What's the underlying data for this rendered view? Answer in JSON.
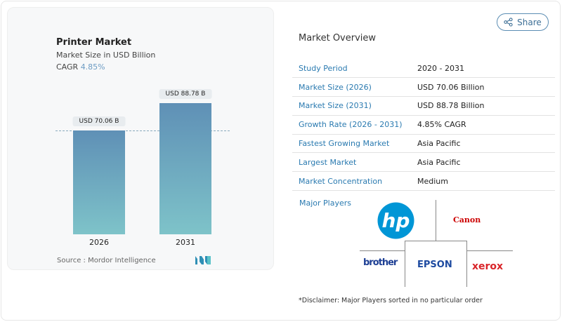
{
  "chart_card": {
    "title": "Printer Market",
    "subtitle": "Market Size in USD Billion",
    "cagr_label": "CAGR",
    "cagr_value": "4.85%",
    "source": "Source :  Mordor Intelligence"
  },
  "chart_data": {
    "type": "bar",
    "categories": [
      "2026",
      "2031"
    ],
    "values": [
      70.06,
      88.78
    ],
    "data_labels": [
      "USD 70.06 B",
      "USD 88.78 B"
    ],
    "title": "Printer Market",
    "ylabel": "Market Size in USD Billion",
    "ylim": [
      0,
      88.78
    ],
    "grid": false,
    "reference_line": 70.06,
    "colors": [
      "#5f90b6",
      "#7ec3c9"
    ]
  },
  "share": {
    "label": "Share",
    "icon": "share-icon"
  },
  "overview": {
    "title": "Market Overview",
    "rows": [
      {
        "label": "Study Period",
        "value": "2020 - 2031"
      },
      {
        "label": "Market Size (2026)",
        "value": "USD 70.06 Billion"
      },
      {
        "label": "Market Size (2031)",
        "value": "USD 88.78 Billion"
      },
      {
        "label": "Growth Rate (2026 - 2031)",
        "value": "4.85% CAGR"
      },
      {
        "label": "Fastest Growing Market",
        "value": "Asia Pacific"
      },
      {
        "label": "Largest Market",
        "value": "Asia Pacific"
      },
      {
        "label": "Market Concentration",
        "value": "Medium"
      }
    ]
  },
  "players": {
    "title": "Major Players",
    "logos": [
      "hp",
      "Canon",
      "brother",
      "EPSON",
      "xerox"
    ],
    "disclaimer": "*Disclaimer: Major Players sorted in no particular order"
  },
  "colors": {
    "accent": "#2a7ab0",
    "hp": "#0096d6",
    "canon": "#cc0000",
    "brother": "#1d3f94",
    "epson": "#1d4aa0",
    "xerox": "#d9252a"
  }
}
